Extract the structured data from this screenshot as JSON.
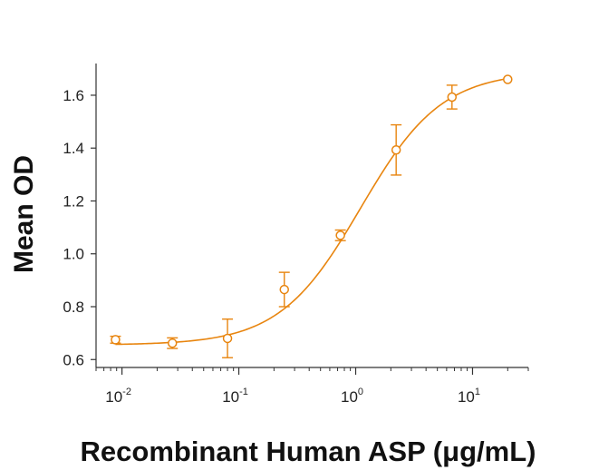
{
  "chart_data": {
    "type": "scatter",
    "title": "",
    "xlabel": "Recombinant Human ASP (μg/mL)",
    "ylabel": "Mean OD",
    "x_scale": "log",
    "xlim": [
      0.006,
      30
    ],
    "ylim": [
      0.57,
      1.72
    ],
    "x_ticks": [
      {
        "value": 0.01,
        "base": "10",
        "exp": "-2"
      },
      {
        "value": 0.1,
        "base": "10",
        "exp": "-1"
      },
      {
        "value": 1,
        "base": "10",
        "exp": "0"
      },
      {
        "value": 10,
        "base": "10",
        "exp": "1"
      }
    ],
    "y_ticks": [
      "0.6",
      "0.8",
      "1.0",
      "1.2",
      "1.4",
      "1.6"
    ],
    "grid": false,
    "legend": "none",
    "color": "#E8850F",
    "series": [
      {
        "x": [
          0.0088,
          0.027,
          0.08,
          0.245,
          0.74,
          2.22,
          6.67,
          20
        ],
        "y": [
          0.675,
          0.662,
          0.68,
          0.865,
          1.07,
          1.393,
          1.593,
          1.66
        ],
        "error": [
          0.013,
          0.02,
          0.073,
          0.065,
          0.02,
          0.095,
          0.045,
          0
        ],
        "fit": "four-parameter logistic"
      }
    ],
    "fit_params": {
      "bottom": 0.655,
      "top": 1.69,
      "ec50": 1.1,
      "hill": 1.25
    }
  }
}
